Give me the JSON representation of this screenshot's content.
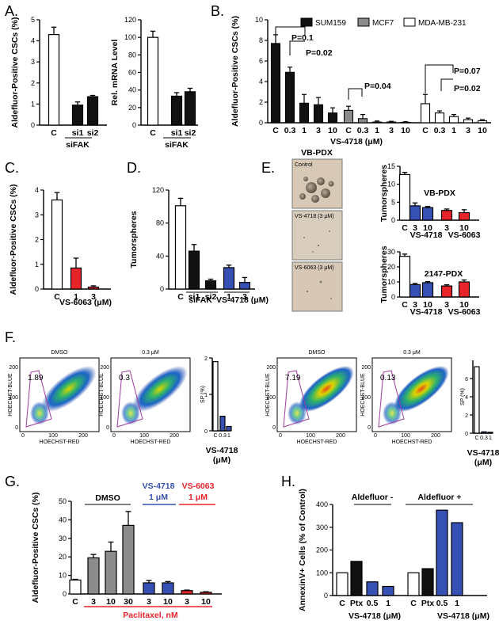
{
  "panel_letters": {
    "A": "A.",
    "B": "B.",
    "C": "C.",
    "D": "D.",
    "E": "E.",
    "F": "F.",
    "G": "G.",
    "H": "H."
  },
  "colors": {
    "black": "#111111",
    "gray": "#8c8c8c",
    "white": "#ffffff",
    "blue": "#3651b3",
    "red": "#e8242b"
  },
  "labels": {
    "sifak": "siFAK",
    "vs4718_um": "VS-4718 (μM)",
    "vs6063_um": "VS-6063 (μM)",
    "vs4718": "VS-4718",
    "vs6063": "VS-6063",
    "um": "(μM)",
    "paclitaxel": "Paclitaxel, nM",
    "dmso": "DMSO",
    "vs4718_1um": "VS-4718",
    "vs6063_1um": "VS-6063",
    "one_um": "1 μM",
    "aldefluor_neg": "Aldefluor -",
    "aldefluor_pos": "Aldefluor +",
    "sp_percent": "SP (%)"
  },
  "legend": {
    "sum159": "SUM159",
    "mcf7": "MCF7",
    "mda": "MDA-MB-231"
  },
  "pvalues": {
    "p1": "P=0.1",
    "p2": "P=0.02",
    "p3": "P=0.04",
    "p4": "P=0.07",
    "p5": "P=0.02"
  },
  "images": {
    "title": "VB-PDX",
    "img1": "Control",
    "img2": "VS-4718 (3 μM)",
    "img3": "VS-6063 (3 μM)"
  },
  "flow": {
    "dmso": "DMSO",
    "conc": "0.3 μM",
    "xaxis": "HOECHST-RED",
    "yaxis": "HOECHST-BLUE",
    "gates": [
      "1.89",
      "0.3",
      "7.19",
      "0.13"
    ],
    "ticks_x": [
      "0",
      "100",
      "200"
    ],
    "ticks_y": [
      "0",
      "100",
      "200"
    ]
  },
  "chart_data": [
    {
      "id": "A1",
      "type": "bar",
      "ylabel": "Aldefluor-Positive CSCs (%)",
      "categories": [
        "C",
        "si1",
        "si2"
      ],
      "values": [
        4.3,
        0.95,
        1.35
      ],
      "errors": [
        0.35,
        0.15,
        0.06
      ],
      "colors": [
        "white",
        "black",
        "black"
      ],
      "ylim": [
        0,
        5
      ],
      "yticks": [
        0,
        1,
        2,
        3,
        4,
        5
      ],
      "group_label": "siFAK"
    },
    {
      "id": "A2",
      "type": "bar",
      "ylabel": "Rel. mRNA Level",
      "categories": [
        "C",
        "si1",
        "si2"
      ],
      "values": [
        100,
        33,
        38
      ],
      "errors": [
        7,
        4,
        4
      ],
      "colors": [
        "white",
        "black",
        "black"
      ],
      "ylim": [
        0,
        120
      ],
      "yticks": [
        0,
        20,
        40,
        60,
        80,
        100,
        120
      ],
      "group_label": "siFAK"
    },
    {
      "id": "B",
      "type": "bar",
      "ylabel": "Aldefluor-Positive CSCs (%)",
      "xlabel": "VS-4718 (μM)",
      "ylim": [
        0,
        10
      ],
      "yticks": [
        0,
        2,
        4,
        6,
        8,
        10
      ],
      "categories": [
        "C",
        "0.3",
        "1",
        "3",
        "10"
      ],
      "series": [
        {
          "name": "SUM159",
          "color": "black",
          "values": [
            7.7,
            4.9,
            1.9,
            1.75,
            0.95
          ],
          "errors": [
            0.85,
            0.5,
            0.85,
            0.7,
            0.5
          ]
        },
        {
          "name": "MCF7",
          "color": "gray",
          "values": [
            1.2,
            0.4,
            0.07,
            0.07,
            0.05
          ],
          "errors": [
            0.4,
            0.4,
            0.1,
            0.07,
            0.05
          ]
        },
        {
          "name": "MDA-MB-231",
          "color": "white",
          "values": [
            1.85,
            0.95,
            0.6,
            0.3,
            0.2
          ],
          "errors": [
            0.9,
            0.2,
            0.2,
            0.15,
            0.1
          ]
        }
      ]
    },
    {
      "id": "C",
      "type": "bar",
      "ylabel": "Aldefluor-Positive CSCs (%)",
      "xlabel": "VS-6063 (μM)",
      "categories": [
        "C",
        "1",
        "3"
      ],
      "values": [
        3.6,
        0.85,
        0.08
      ],
      "errors": [
        0.3,
        0.4,
        0.05
      ],
      "colors": [
        "white",
        "red",
        "red"
      ],
      "ylim": [
        0,
        4
      ],
      "yticks": [
        0,
        1,
        2,
        3,
        4
      ]
    },
    {
      "id": "D",
      "type": "bar",
      "ylabel": "Tumorspheres",
      "categories": [
        "C",
        "si1",
        "si2",
        "1",
        "3"
      ],
      "values": [
        101,
        46,
        10,
        26,
        8
      ],
      "errors": [
        9,
        8,
        2,
        3,
        6
      ],
      "colors": [
        "white",
        "black",
        "black",
        "blue",
        "blue"
      ],
      "ylim": [
        0,
        120
      ],
      "yticks": [
        0,
        40,
        80,
        120
      ]
    },
    {
      "id": "E1",
      "type": "bar",
      "title": "VB-PDX",
      "ylabel": "Tumorspheres",
      "categories": [
        "C",
        "3",
        "10",
        "3",
        "10"
      ],
      "values": [
        12.7,
        4,
        3.5,
        2.7,
        2.1
      ],
      "errors": [
        0.6,
        0.8,
        0.3,
        0.4,
        0.8
      ],
      "colors": [
        "white",
        "blue",
        "blue",
        "red",
        "red"
      ],
      "ylim": [
        0,
        15
      ],
      "yticks": [
        0,
        5,
        10,
        15
      ]
    },
    {
      "id": "E2",
      "type": "bar",
      "title": "2147-PDX",
      "ylabel": "Tumorspheres",
      "categories": [
        "C",
        "3",
        "10",
        "3",
        "10"
      ],
      "values": [
        27,
        8.2,
        9.5,
        7.3,
        10
      ],
      "errors": [
        1.5,
        0.8,
        0.7,
        0.8,
        1.3
      ],
      "colors": [
        "white",
        "blue",
        "blue",
        "red",
        "red"
      ],
      "ylim": [
        0,
        30
      ],
      "yticks": [
        0,
        10,
        20,
        30
      ]
    },
    {
      "id": "F1",
      "type": "bar",
      "ylabel": "SP (%)",
      "categories": [
        "C",
        "0.3",
        "1"
      ],
      "values": [
        1.9,
        0.4,
        0.12
      ],
      "errors": [
        0,
        0,
        0
      ],
      "colors": [
        "white",
        "blue",
        "blue"
      ],
      "ylim": [
        0,
        2
      ],
      "yticks": [
        0,
        1,
        2
      ]
    },
    {
      "id": "F2",
      "type": "bar",
      "ylabel": "SP (%)",
      "categories": [
        "C",
        "0.3",
        "1"
      ],
      "values": [
        7.3,
        0.15,
        0.1
      ],
      "errors": [
        0,
        0,
        0
      ],
      "colors": [
        "white",
        "blue",
        "blue"
      ],
      "ylim": [
        0,
        8
      ],
      "yticks": [
        0,
        2,
        4,
        6
      ]
    },
    {
      "id": "G",
      "type": "bar",
      "ylabel": "Aldefluor-Positive CSCs (%)",
      "xlabel": "Paclitaxel, nM",
      "categories": [
        "C",
        "3",
        "10",
        "30",
        "3",
        "10",
        "3",
        "10"
      ],
      "values": [
        7.5,
        19.5,
        23,
        37,
        6,
        6,
        1.8,
        0.9
      ],
      "errors": [
        0.4,
        1.8,
        5,
        7.5,
        1.3,
        0.7,
        0.3,
        0.3
      ],
      "colors": [
        "white",
        "gray",
        "gray",
        "gray",
        "blue",
        "blue",
        "red",
        "red"
      ],
      "ylim": [
        0,
        50
      ],
      "yticks": [
        0,
        10,
        20,
        30,
        40,
        50
      ]
    },
    {
      "id": "H",
      "type": "bar",
      "ylabel": "AnnexinV+ Cells (% of Control)",
      "categories": [
        "C",
        "Ptx",
        "0.5",
        "1",
        "C",
        "Ptx",
        "0.5",
        "1"
      ],
      "values": [
        100,
        150,
        60,
        40,
        100,
        118,
        375,
        320
      ],
      "errors": [
        0,
        0,
        0,
        0,
        0,
        0,
        0,
        0
      ],
      "colors": [
        "white",
        "black",
        "blue",
        "blue",
        "white",
        "black",
        "blue",
        "blue"
      ],
      "ylim": [
        0,
        400
      ],
      "yticks": [
        0,
        100,
        200,
        300,
        400
      ]
    }
  ]
}
